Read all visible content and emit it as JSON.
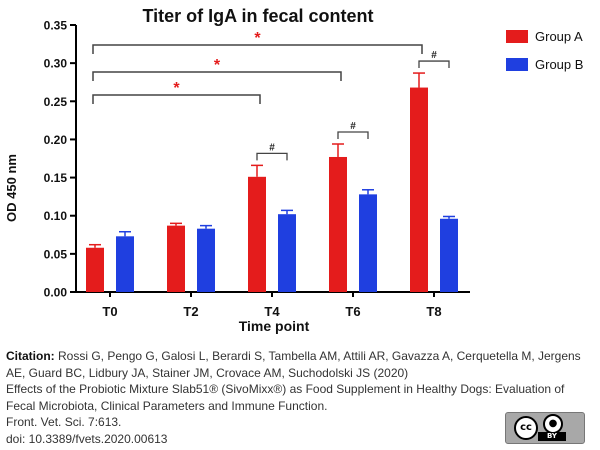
{
  "chart_data": {
    "type": "bar",
    "title": "Titer of IgA in fecal content",
    "xlabel": "Time point",
    "ylabel": "OD 450 nm",
    "categories": [
      "T0",
      "T2",
      "T4",
      "T6",
      "T8"
    ],
    "ylim": [
      0,
      0.35
    ],
    "yticks": [
      "0.00",
      "0.05",
      "0.10",
      "0.15",
      "0.20",
      "0.25",
      "0.30",
      "0.35"
    ],
    "series": [
      {
        "name": "Group A",
        "color": "#e41c1c",
        "values": [
          0.058,
          0.087,
          0.151,
          0.177,
          0.268
        ],
        "errors": [
          0.004,
          0.003,
          0.015,
          0.017,
          0.019
        ]
      },
      {
        "name": "Group B",
        "color": "#1f3fe0",
        "values": [
          0.073,
          0.083,
          0.102,
          0.128,
          0.096
        ],
        "errors": [
          0.006,
          0.004,
          0.005,
          0.006,
          0.003
        ]
      }
    ],
    "legend_position": "top-right",
    "significance": [
      {
        "from": "T0",
        "to": "T4",
        "label": "*",
        "between": "time points"
      },
      {
        "from": "T0",
        "to": "T6",
        "label": "*",
        "between": "time points"
      },
      {
        "from": "T0",
        "to": "T8",
        "label": "*",
        "between": "time points"
      },
      {
        "at": "T4",
        "label": "#",
        "between": "groups"
      },
      {
        "at": "T6",
        "label": "#",
        "between": "groups"
      },
      {
        "at": "T8",
        "label": "#",
        "between": "groups"
      }
    ]
  },
  "citation": {
    "label": "Citation:",
    "authors": "Rossi G, Pengo G, Galosi L, Berardi S, Tambella AM, Attili AR, Gavazza A, Cerquetella M, Jergens AE, Guard BC, Lidbury JA, Stainer JM, Crovace AM, Suchodolski JS (2020)",
    "title": "Effects of the Probiotic Mixture Slab51® (SivoMixx®) as Food Supplement in Healthy Dogs: Evaluation of Fecal Microbiota, Clinical Parameters and Immune Function.",
    "journal": "Front. Vet. Sci. 7:613.",
    "doi": "doi: 10.3389/fvets.2020.00613"
  },
  "license": {
    "cc_text": "cc",
    "by_text": "BY"
  }
}
